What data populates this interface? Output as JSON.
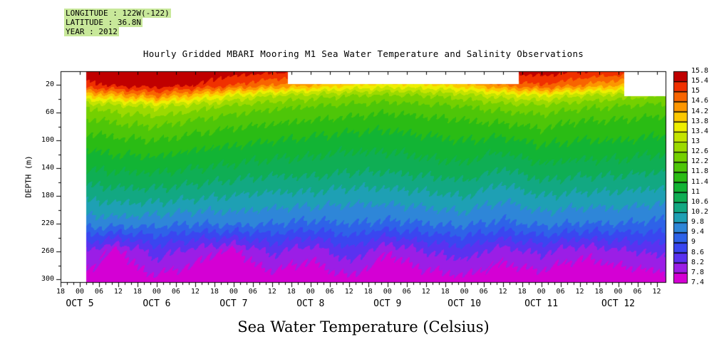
{
  "header": {
    "line1": "LONGITUDE : 122W(-122)",
    "line2": "LATITUDE : 36.8N",
    "line3": "YEAR : 2012",
    "highlight_color": "#c8e89a"
  },
  "title": "Hourly Gridded MBARI Mooring M1 Sea Water Temperature and Salinity Observations",
  "caption": "Sea Water Temperature (Celsius)",
  "y_axis": {
    "label": "DEPTH (m)",
    "tick_labels": [
      20,
      60,
      100,
      140,
      180,
      220,
      260,
      300
    ],
    "minor_ticks": [
      40,
      80,
      120,
      160,
      200,
      240,
      280
    ],
    "range_m": [
      0,
      305
    ]
  },
  "x_axis": {
    "hour_tick_labels": [
      "18",
      "00",
      "06",
      "12",
      "18",
      "00",
      "06",
      "12",
      "18",
      "00",
      "06",
      "12",
      "18",
      "00",
      "06",
      "12",
      "18",
      "00",
      "06",
      "12",
      "18",
      "00",
      "06",
      "12",
      "18",
      "00",
      "06",
      "12",
      "18",
      "00",
      "06",
      "12"
    ],
    "tick_interval_hours": 6,
    "range_hours": [
      0,
      189
    ],
    "date_labels": [
      {
        "label": "OCT 5",
        "t": 6
      },
      {
        "label": "OCT 6",
        "t": 30
      },
      {
        "label": "OCT 7",
        "t": 54
      },
      {
        "label": "OCT 8",
        "t": 78
      },
      {
        "label": "OCT 9",
        "t": 102
      },
      {
        "label": "OCT 10",
        "t": 126
      },
      {
        "label": "OCT 11",
        "t": 150
      },
      {
        "label": "OCT 12",
        "t": 174
      }
    ]
  },
  "colorbar": {
    "min": 7.4,
    "max": 15.8,
    "step": 0.4,
    "tick_labels": [
      "15.8",
      "15.4",
      "15",
      "14.6",
      "14.2",
      "13.8",
      "13.4",
      "13",
      "12.6",
      "12.2",
      "11.8",
      "11.4",
      "11",
      "10.6",
      "10.2",
      "9.8",
      "9.4",
      "9",
      "8.6",
      "8.2",
      "7.8",
      "7.4"
    ],
    "colors_low_to_high": [
      "#d400d4",
      "#9b1ee6",
      "#5a32f0",
      "#3a46f0",
      "#2e62e8",
      "#2e86d8",
      "#1ea0b4",
      "#12a882",
      "#0fae54",
      "#12b434",
      "#2abc14",
      "#4ec608",
      "#74d000",
      "#9cda00",
      "#c4e400",
      "#eeee00",
      "#fcc800",
      "#fc9600",
      "#f86400",
      "#f03000",
      "#c00000"
    ]
  },
  "chart_data": {
    "type": "heatmap",
    "title": "Hourly Gridded MBARI Mooring M1 Sea Water Temperature and Salinity Observations",
    "x_unit": "hours since 2012-10-04 18:00",
    "ylabel": "DEPTH (m)",
    "value_unit": "Celsius",
    "value_range": [
      7.4,
      15.8
    ],
    "data_start_hour": 8,
    "times_h": [
      6,
      18,
      30,
      42,
      54,
      66,
      78,
      90,
      102,
      114,
      126,
      138,
      150,
      162,
      174,
      186
    ],
    "depths_m": [
      0,
      20,
      35,
      50,
      70,
      100,
      140,
      180,
      220,
      260,
      300
    ],
    "temperature_c": [
      [
        15.7,
        15.8,
        15.8,
        15.7,
        15.6,
        15.5,
        15.4,
        15.3,
        15.2,
        15.2,
        15.3,
        15.5,
        15.6,
        15.4,
        15.3,
        15.1
      ],
      [
        15.2,
        15.5,
        15.6,
        15.4,
        15.0,
        14.6,
        14.2,
        13.8,
        13.6,
        13.7,
        14.0,
        14.6,
        15.0,
        14.6,
        14.2,
        13.8
      ],
      [
        13.8,
        14.2,
        14.6,
        14.0,
        13.4,
        13.0,
        12.8,
        12.6,
        12.5,
        12.6,
        12.8,
        13.2,
        13.4,
        13.0,
        12.8,
        12.6
      ],
      [
        12.6,
        12.9,
        13.1,
        12.8,
        12.5,
        12.3,
        12.2,
        12.1,
        12.0,
        12.1,
        12.2,
        12.4,
        12.5,
        12.3,
        12.2,
        12.1
      ],
      [
        12.1,
        12.3,
        12.4,
        12.2,
        12.0,
        11.9,
        11.8,
        11.7,
        11.6,
        11.7,
        11.8,
        11.9,
        12.0,
        11.8,
        11.8,
        11.7
      ],
      [
        11.6,
        11.7,
        11.8,
        11.6,
        11.5,
        11.4,
        11.3,
        11.2,
        11.2,
        11.3,
        11.4,
        11.3,
        11.5,
        11.4,
        11.4,
        11.3
      ],
      [
        11.0,
        11.1,
        11.1,
        11.0,
        10.9,
        10.8,
        10.8,
        10.7,
        10.7,
        10.8,
        10.9,
        10.6,
        10.9,
        10.8,
        10.8,
        10.7
      ],
      [
        10.3,
        10.4,
        10.4,
        10.3,
        10.2,
        10.1,
        10.1,
        10.0,
        10.0,
        10.1,
        10.2,
        9.9,
        10.2,
        10.1,
        10.1,
        10.0
      ],
      [
        9.6,
        9.6,
        9.5,
        9.4,
        9.5,
        9.4,
        9.3,
        9.4,
        9.3,
        9.4,
        9.5,
        9.3,
        9.5,
        9.4,
        9.4,
        9.3
      ],
      [
        8.2,
        7.7,
        8.4,
        8.0,
        7.7,
        8.3,
        7.9,
        8.5,
        7.8,
        8.2,
        8.4,
        8.0,
        8.3,
        7.9,
        8.1,
        8.3
      ],
      [
        7.6,
        7.5,
        7.7,
        7.5,
        7.4,
        7.6,
        7.5,
        7.7,
        7.4,
        7.6,
        7.7,
        7.5,
        7.6,
        7.4,
        7.5,
        7.6
      ]
    ],
    "missing_data_gaps": [
      {
        "t_start": 71,
        "t_end": 143,
        "depth_min": 0,
        "depth_max": 18
      },
      {
        "t_start": 176,
        "t_end": 189,
        "depth_min": 0,
        "depth_max": 36
      }
    ]
  }
}
